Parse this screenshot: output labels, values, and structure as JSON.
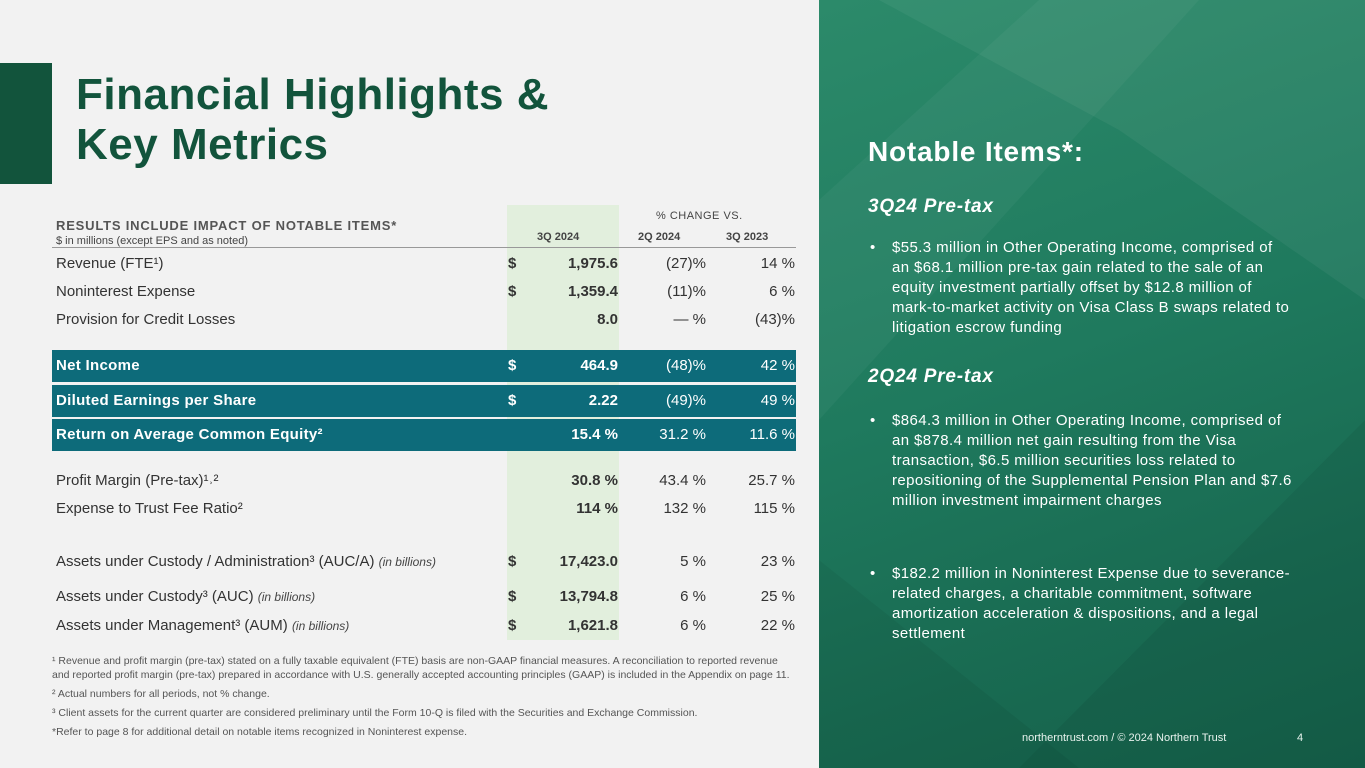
{
  "title": {
    "line1": "Financial Highlights &",
    "line2": "Key Metrics"
  },
  "table": {
    "header": {
      "title": "RESULTS INCLUDE IMPACT OF NOTABLE ITEMS*",
      "subtitle": "$ in millions (except EPS and as noted)",
      "change_label": "% CHANGE VS.",
      "col_3q2024": "3Q 2024",
      "col_2q2024": "2Q 2024",
      "col_3q2023": "3Q 2023"
    },
    "rows": [
      {
        "label": "Revenue (FTE¹)",
        "dollar": "$",
        "v3q24": "1,975.6",
        "v2q24": "(27)%",
        "v3q23": "14 %"
      },
      {
        "label": "Noninterest Expense",
        "dollar": "$",
        "v3q24": "1,359.4",
        "v2q24": "(11)%",
        "v3q23": "6 %"
      },
      {
        "label": "Provision for Credit Losses",
        "dollar": "",
        "v3q24": "8.0",
        "v2q24": "— %",
        "v3q23": "(43)%"
      },
      {
        "label": "Net Income",
        "dollar": "$",
        "v3q24": "464.9",
        "v2q24": "(48)%",
        "v3q23": "42 %"
      },
      {
        "label": "Diluted Earnings per Share",
        "dollar": "$",
        "v3q24": "2.22",
        "v2q24": "(49)%",
        "v3q23": "49 %"
      },
      {
        "label": "Return on Average Common Equity²",
        "dollar": "",
        "v3q24": "15.4 %",
        "v2q24": "31.2 %",
        "v3q23": "11.6 %"
      },
      {
        "label": "Profit Margin (Pre-tax)¹˒²",
        "dollar": "",
        "v3q24": "30.8 %",
        "v2q24": "43.4 %",
        "v3q23": "25.7 %"
      },
      {
        "label": "Expense to Trust Fee Ratio²",
        "dollar": "",
        "v3q24": "114 %",
        "v2q24": "132 %",
        "v3q23": "115 %"
      },
      {
        "label": "Assets under Custody / Administration³ (AUC/A)",
        "note": "(in billions)",
        "dollar": "$",
        "v3q24": "17,423.0",
        "v2q24": "5 %",
        "v3q23": "23 %"
      },
      {
        "label": "Assets under Custody³ (AUC)",
        "note": "(in billions)",
        "dollar": "$",
        "v3q24": "13,794.8",
        "v2q24": "6 %",
        "v3q23": "25 %"
      },
      {
        "label": "Assets under Management³ (AUM)",
        "note": "(in billions)",
        "dollar": "$",
        "v3q24": "1,621.8",
        "v2q24": "6 %",
        "v3q23": "22 %"
      }
    ]
  },
  "footnotes": {
    "f1": "¹ Revenue and profit margin (pre-tax) stated on a fully taxable equivalent (FTE) basis are non-GAAP financial measures. A reconciliation to reported revenue and reported profit margin (pre-tax) prepared in accordance with U.S. generally accepted accounting principles (GAAP) is included in the Appendix on page 11.",
    "f2": "² Actual numbers for all periods, not % change.",
    "f3": "³ Client assets for the current quarter are considered preliminary until the Form 10-Q is filed with the Securities and Exchange Commission.",
    "f4": "*Refer to page 8 for additional detail on notable items recognized in Noninterest expense."
  },
  "notable": {
    "title": "Notable Items*:",
    "sub1": "3Q24 Pre-tax",
    "bullet1": "$55.3 million in Other Operating Income, comprised of an $68.1 million pre-tax gain related to the sale of an equity investment partially offset by $12.8 million of mark-to-market activity on Visa Class B swaps related to litigation escrow funding",
    "sub2": "2Q24 Pre-tax",
    "bullet2": "$864.3 million in Other Operating Income, comprised of an $878.4 million net gain resulting from the Visa transaction, $6.5 million securities loss related to repositioning of the Supplemental Pension Plan and $7.6 million investment impairment charges",
    "bullet3": "$182.2 million in Noninterest Expense due to severance-related charges, a charitable commitment, software amortization acceleration & dispositions, and a legal settlement",
    "bullet_char": "•"
  },
  "footer": {
    "text": "northerntrust.com / © 2024 Northern Trust",
    "page": "4"
  },
  "colors": {
    "brand_green": "#12543c",
    "teal_row": "#0d6b7a",
    "highlight_col": "#e2efdd",
    "panel_green": "#1f7a5e"
  }
}
